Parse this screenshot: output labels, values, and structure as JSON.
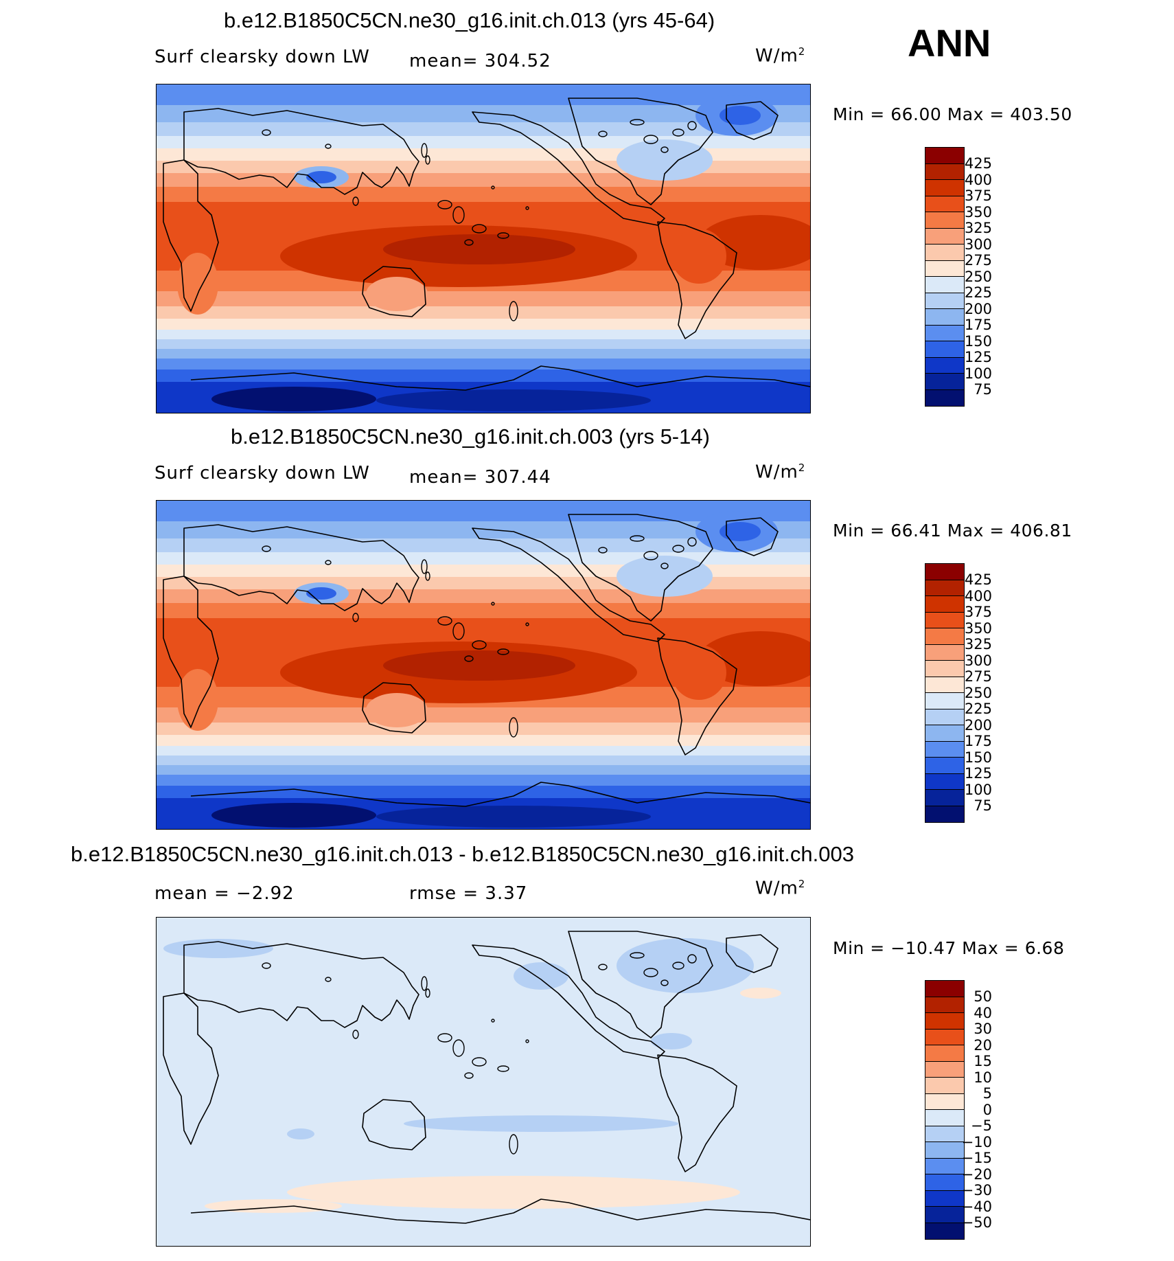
{
  "season": "ANN",
  "panels": [
    {
      "title": "b.e12.B1850C5CN.ne30_g16.init.ch.013 (yrs 45-64)",
      "left_label": "Surf clearsky down LW",
      "stat": "mean= 304.52",
      "units": "W/m",
      "units_sup": "2",
      "minmax": "Min =   66.00  Max  =  403.50",
      "colorbar": {
        "labels": [
          "425",
          "400",
          "375",
          "350",
          "325",
          "300",
          "275",
          "250",
          "225",
          "200",
          "175",
          "150",
          "125",
          "100",
          "75"
        ],
        "colors": [
          "#8b0000",
          "#b22200",
          "#cf3300",
          "#e8501a",
          "#f47a45",
          "#f8a07a",
          "#fbc9ad",
          "#fde7d6",
          "#dbe9f8",
          "#b5d0f4",
          "#8db6f0",
          "#5b8ef0",
          "#2e63e6",
          "#0f37c8",
          "#06239a",
          "#021070"
        ]
      },
      "map": {
        "style": "abs",
        "mean": 304.52
      }
    },
    {
      "title": "b.e12.B1850C5CN.ne30_g16.init.ch.003 (yrs 5-14)",
      "left_label": "Surf clearsky down LW",
      "stat": "mean= 307.44",
      "units": "W/m",
      "units_sup": "2",
      "minmax": "Min =   66.41  Max  =  406.81",
      "colorbar": {
        "labels": [
          "425",
          "400",
          "375",
          "350",
          "325",
          "300",
          "275",
          "250",
          "225",
          "200",
          "175",
          "150",
          "125",
          "100",
          "75"
        ],
        "colors": [
          "#8b0000",
          "#b22200",
          "#cf3300",
          "#e8501a",
          "#f47a45",
          "#f8a07a",
          "#fbc9ad",
          "#fde7d6",
          "#dbe9f8",
          "#b5d0f4",
          "#8db6f0",
          "#5b8ef0",
          "#2e63e6",
          "#0f37c8",
          "#06239a",
          "#021070"
        ]
      },
      "map": {
        "style": "abs",
        "mean": 307.44
      }
    },
    {
      "title": "b.e12.B1850C5CN.ne30_g16.init.ch.013 - b.e12.B1850C5CN.ne30_g16.init.ch.003",
      "left_label": "mean =   −2.92",
      "stat": "rmse =    3.37",
      "units": "W/m",
      "units_sup": "2",
      "minmax": "Min = −10.47  Max =    6.68",
      "colorbar": {
        "labels": [
          "50",
          "40",
          "30",
          "20",
          "15",
          "10",
          "5",
          "0",
          "−5",
          "−10",
          "−15",
          "−20",
          "−30",
          "−40",
          "−50"
        ],
        "colors": [
          "#8b0000",
          "#b22200",
          "#cf3300",
          "#e8501a",
          "#f47a45",
          "#f8a07a",
          "#fbc9ad",
          "#fde7d6",
          "#dbe9f8",
          "#b5d0f4",
          "#8db6f0",
          "#5b8ef0",
          "#2e63e6",
          "#0f37c8",
          "#06239a",
          "#021070"
        ]
      },
      "map": {
        "style": "diff",
        "mean": -2.92
      }
    }
  ]
}
